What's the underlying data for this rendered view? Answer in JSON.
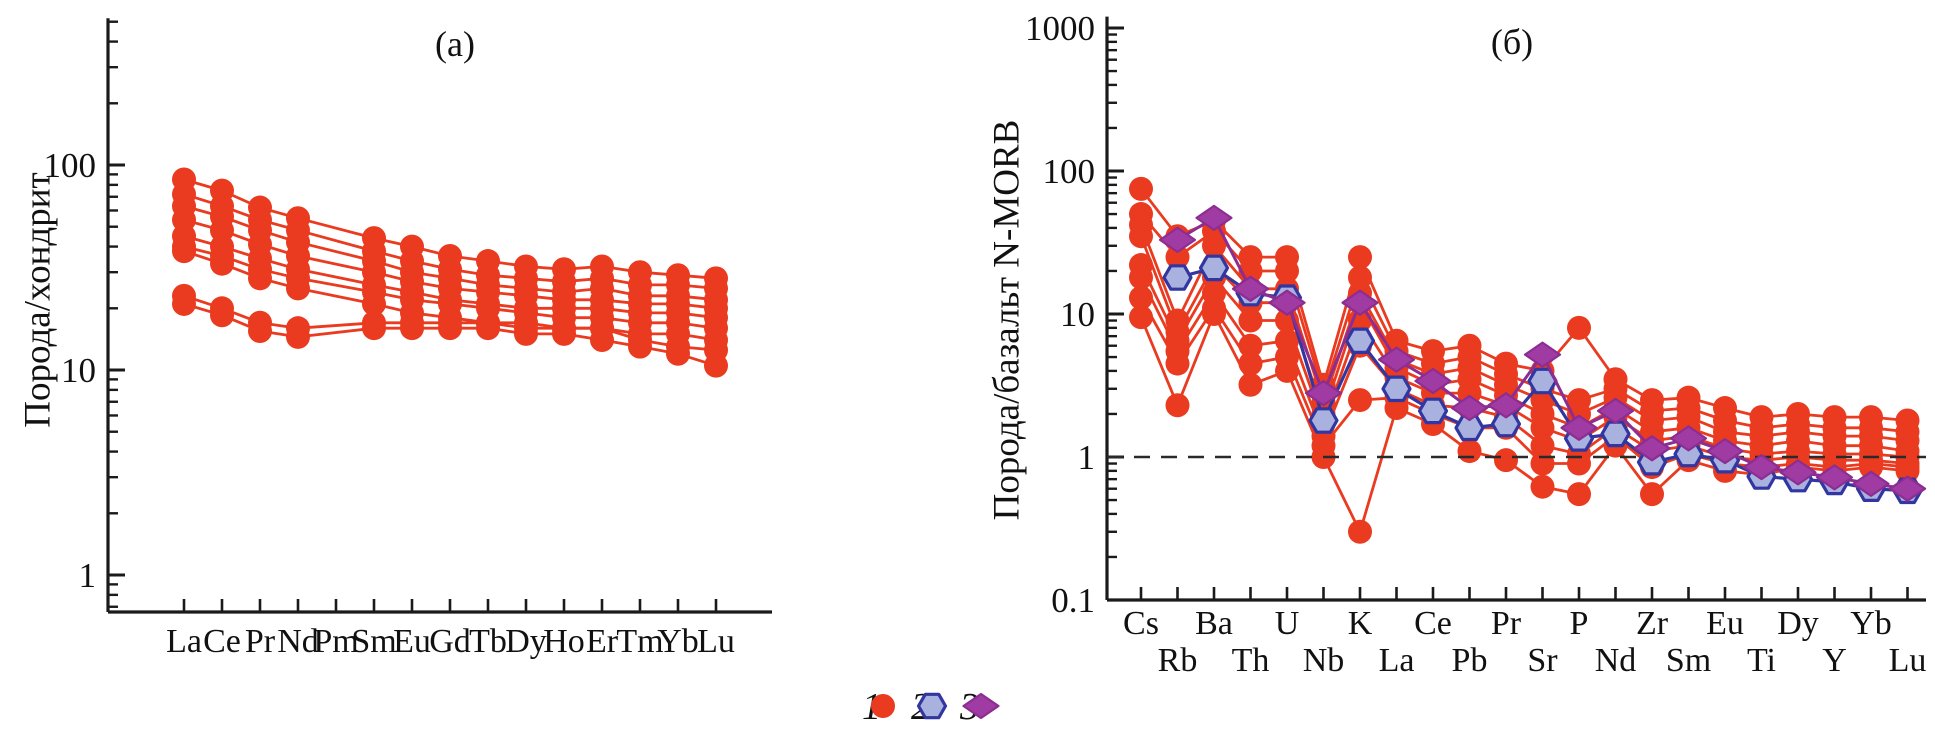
{
  "figure": {
    "background": "#ffffff",
    "colors": {
      "red": "#ea3a1f",
      "hex_fill": "#a9b1de",
      "hex_stroke": "#3236a0",
      "diamond_fill": "#a03ba4",
      "diamond_stroke": "#8c2d91",
      "axis": "#1a1a1a",
      "reference_dash": "#2a2a2a"
    }
  },
  "legend": {
    "items": [
      {
        "marker": "circle",
        "label": "1"
      },
      {
        "marker": "hexagon",
        "label": "2"
      },
      {
        "marker": "diamond",
        "label": "3"
      }
    ]
  },
  "chart_data": [
    {
      "type": "line",
      "title": "(а)",
      "ylabel": "Порода/хондрит",
      "yscale": "log",
      "ylim": [
        0.66,
        520
      ],
      "yticks": [
        1,
        10,
        100
      ],
      "ytick_labels": [
        "1",
        "10",
        "100"
      ],
      "grid": false,
      "categories": [
        "La",
        "Ce",
        "Pr",
        "Nd",
        "Pm",
        "Sm",
        "Eu",
        "Gd",
        "Tb",
        "Dy",
        "Ho",
        "Er",
        "Tm",
        "Yb",
        "Lu"
      ],
      "series": [
        {
          "name": "sample-1",
          "group": "1",
          "marker": "circle",
          "values": [
            85,
            75,
            62,
            55,
            null,
            44,
            40,
            36,
            34,
            32,
            31,
            32,
            30,
            29,
            28
          ]
        },
        {
          "name": "sample-2",
          "group": "1",
          "marker": "circle",
          "values": [
            72,
            63,
            54,
            48,
            null,
            38,
            34,
            31,
            29,
            28,
            27,
            28,
            26,
            26,
            25
          ]
        },
        {
          "name": "sample-3",
          "group": "1",
          "marker": "circle",
          "values": [
            63,
            56,
            48,
            42,
            null,
            34,
            30,
            28,
            26,
            25,
            24,
            25,
            23,
            23,
            22
          ]
        },
        {
          "name": "sample-4",
          "group": "1",
          "marker": "circle",
          "values": [
            54,
            48,
            41,
            36,
            null,
            30,
            27,
            25,
            24,
            23,
            22,
            22,
            21,
            21,
            20
          ]
        },
        {
          "name": "sample-5",
          "group": "1",
          "marker": "circle",
          "values": [
            45,
            40,
            35,
            31,
            null,
            26,
            24,
            22,
            21,
            20,
            20,
            20,
            19,
            19,
            18
          ]
        },
        {
          "name": "sample-6",
          "group": "1",
          "marker": "circle",
          "values": [
            40,
            36,
            31,
            28,
            null,
            24,
            22,
            21,
            20,
            19,
            18,
            18,
            17,
            17,
            16
          ]
        },
        {
          "name": "sample-7",
          "group": "1",
          "marker": "circle",
          "values": [
            38,
            33,
            28,
            25,
            null,
            21,
            19,
            18,
            17,
            17,
            16,
            16,
            15,
            15,
            14
          ]
        },
        {
          "name": "sample-8",
          "group": "1",
          "marker": "circle",
          "values": [
            23,
            20,
            17,
            16,
            null,
            17,
            17,
            17,
            17,
            16,
            16,
            16,
            14,
            13,
            12.5
          ]
        },
        {
          "name": "sample-9",
          "group": "1",
          "marker": "circle",
          "values": [
            21,
            18.5,
            15.5,
            14.5,
            null,
            16,
            16,
            16,
            16,
            15,
            15,
            14,
            13,
            12,
            10.5
          ]
        }
      ]
    },
    {
      "type": "line",
      "title": "(б)",
      "ylabel": "Порода/базальт N-MORB",
      "yscale": "log",
      "ylim": [
        0.1,
        1200
      ],
      "yticks": [
        0.1,
        1,
        10,
        100,
        1000
      ],
      "ytick_labels": [
        "0.1",
        "1",
        "10",
        "100",
        "1000"
      ],
      "grid": false,
      "reference_line": {
        "value": 1,
        "style": "dashed"
      },
      "categories": [
        "Cs",
        "Rb",
        "Ba",
        "Th",
        "U",
        "Nb",
        "K",
        "La",
        "Ce",
        "Pb",
        "Pr",
        "Sr",
        "P",
        "Nd",
        "Zr",
        "Sm",
        "Eu",
        "Ti",
        "Dy",
        "Y",
        "Yb",
        "Lu"
      ],
      "label_stagger": true,
      "series": [
        {
          "name": "sample-1",
          "group": "1",
          "marker": "circle",
          "values": [
            75,
            35,
            45,
            25,
            25,
            3.2,
            25,
            6.5,
            5.5,
            6.0,
            4.5,
            4.0,
            8.0,
            3.5,
            2.5,
            2.6,
            2.2,
            1.9,
            2.0,
            1.9,
            1.9,
            1.8
          ]
        },
        {
          "name": "sample-2",
          "group": "1",
          "marker": "circle",
          "values": [
            50,
            25,
            38,
            20,
            20,
            2.8,
            18,
            5.5,
            4.5,
            5.0,
            3.8,
            3.0,
            2.5,
            3.0,
            2.1,
            2.2,
            1.8,
            1.6,
            1.7,
            1.6,
            1.6,
            1.5
          ]
        },
        {
          "name": "sample-3",
          "group": "1",
          "marker": "circle",
          "values": [
            42,
            9,
            30,
            15,
            15,
            2.4,
            14,
            4.8,
            3.8,
            4.2,
            3.2,
            2.5,
            2.0,
            2.6,
            1.8,
            1.9,
            1.5,
            1.4,
            1.5,
            1.4,
            1.4,
            1.3
          ]
        },
        {
          "name": "sample-4",
          "group": "1",
          "marker": "circle",
          "values": [
            35,
            7.5,
            22,
            12,
            12,
            2.0,
            12,
            4.2,
            3.2,
            3.5,
            2.7,
            2.0,
            1.6,
            2.2,
            1.5,
            1.6,
            1.3,
            1.2,
            1.3,
            1.2,
            1.2,
            1.1
          ]
        },
        {
          "name": "sample-5",
          "group": "1",
          "marker": "circle",
          "values": [
            22,
            6.5,
            18,
            9,
            9,
            1.7,
            9,
            3.6,
            2.8,
            2.8,
            2.3,
            1.6,
            1.3,
            1.9,
            1.3,
            1.4,
            1.15,
            1.05,
            1.1,
            1.05,
            1.05,
            1.0
          ]
        },
        {
          "name": "sample-6",
          "group": "1",
          "marker": "circle",
          "values": [
            18,
            5.5,
            14,
            6,
            6.5,
            1.4,
            6,
            3.0,
            2.3,
            2.2,
            1.9,
            1.2,
            1.05,
            1.6,
            1.1,
            1.2,
            1.0,
            0.95,
            1.0,
            0.95,
            0.95,
            0.9
          ]
        },
        {
          "name": "sample-7",
          "group": "1",
          "marker": "circle",
          "values": [
            13,
            4.5,
            11,
            4.5,
            5,
            1.2,
            2.5,
            2.6,
            2.0,
            1.6,
            1.6,
            0.9,
            0.9,
            1.4,
            0.85,
            1.05,
            0.9,
            0.85,
            0.9,
            0.85,
            0.9,
            0.85
          ]
        },
        {
          "name": "sample-8",
          "group": "1",
          "marker": "circle",
          "values": [
            9.5,
            2.3,
            10,
            3.2,
            4,
            1.0,
            0.3,
            2.2,
            1.7,
            1.1,
            0.95,
            0.62,
            0.55,
            1.2,
            0.55,
            0.95,
            0.8,
            0.75,
            0.85,
            0.8,
            0.85,
            0.8
          ]
        },
        {
          "name": "sample-hex",
          "group": "2",
          "marker": "hexagon",
          "values": [
            null,
            18,
            21,
            14,
            13,
            1.8,
            6.5,
            3.0,
            2.1,
            1.6,
            1.7,
            3.4,
            1.35,
            1.45,
            0.92,
            1.05,
            0.95,
            0.73,
            0.7,
            0.67,
            0.6,
            0.58
          ]
        },
        {
          "name": "sample-diamond",
          "group": "3",
          "marker": "diamond",
          "values": [
            null,
            33,
            47,
            15,
            12,
            2.8,
            12,
            4.8,
            3.4,
            2.2,
            2.3,
            5.2,
            1.6,
            2.1,
            1.15,
            1.35,
            1.1,
            0.85,
            0.78,
            0.72,
            0.65,
            0.6
          ]
        }
      ]
    }
  ]
}
